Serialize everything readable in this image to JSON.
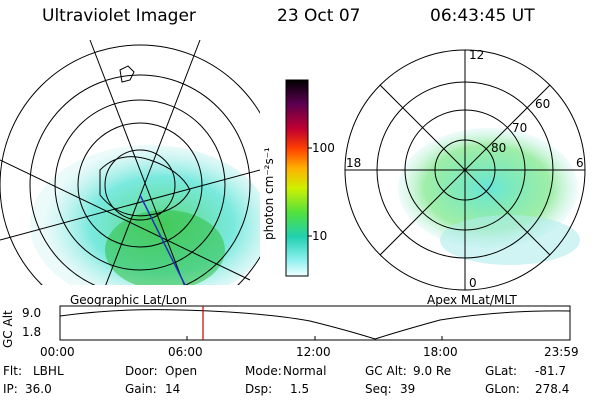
{
  "header": {
    "instrument": "Ultraviolet Imager",
    "date": "23 Oct 07",
    "time": "06:43:45 UT"
  },
  "left_map": {
    "caption": "Geographic Lat/Lon"
  },
  "right_map": {
    "caption": "Apex MLat/MLT",
    "mlt_labels": {
      "top": "12",
      "left": "18",
      "right": "6",
      "bottom": "0"
    },
    "lat_labels": [
      "60",
      "70",
      "80"
    ]
  },
  "colorbar": {
    "unit_label": "photon cm⁻²s⁻¹",
    "ticks": [
      "100",
      "10"
    ],
    "colors": [
      "#000000",
      "#3a0040",
      "#7a0050",
      "#b00030",
      "#e01010",
      "#ff6000",
      "#ffb000",
      "#ffe000",
      "#c8f000",
      "#60e040",
      "#20d0a0",
      "#40e0d0",
      "#b0f0f0",
      "#e8ffff"
    ]
  },
  "altitude_plot": {
    "ylabel": "GC Alt",
    "yticks": [
      "9.0",
      "1.8"
    ],
    "xticks": [
      "00:00",
      "06:00",
      "12:00",
      "18:00",
      "23:59"
    ],
    "current_marker_color": "#cc0000"
  },
  "footer": {
    "row1": [
      {
        "label": "Flt:",
        "value": "LBHL"
      },
      {
        "label": "Door:",
        "value": "Open"
      },
      {
        "label": "Mode:",
        "value": "Normal"
      },
      {
        "label": "GC Alt:",
        "value": "9.0 Re"
      },
      {
        "label": "GLat:",
        "value": "-81.7"
      }
    ],
    "row2": [
      {
        "label": "IP:",
        "value": "36.0"
      },
      {
        "label": "Gain:",
        "value": "14"
      },
      {
        "label": "Dsp:",
        "value": "1.5"
      },
      {
        "label": "Seq:",
        "value": "39"
      },
      {
        "label": "GLon:",
        "value": "278.4"
      }
    ]
  }
}
